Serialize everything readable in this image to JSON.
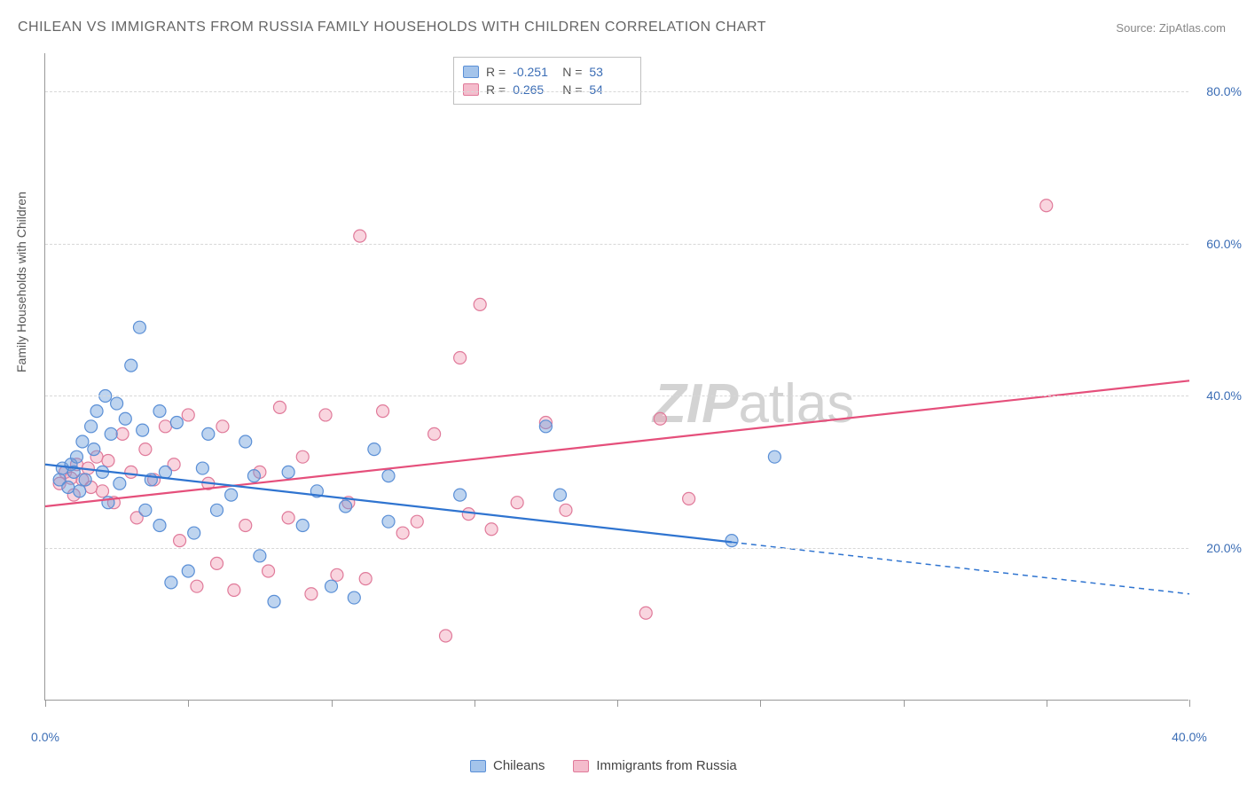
{
  "title": "CHILEAN VS IMMIGRANTS FROM RUSSIA FAMILY HOUSEHOLDS WITH CHILDREN CORRELATION CHART",
  "source_label": "Source:",
  "source_name": "ZipAtlas.com",
  "y_axis_title": "Family Households with Children",
  "watermark_a": "ZIP",
  "watermark_b": "atlas",
  "chart": {
    "type": "scatter-correlation",
    "background_color": "#ffffff",
    "grid_color": "#d8d8d8",
    "axis_color": "#999999",
    "tick_label_color": "#3b6db5",
    "tick_label_fontsize": 14,
    "xlim": [
      0,
      40
    ],
    "ylim": [
      0,
      85
    ],
    "x_ticks": [
      0,
      5,
      10,
      15,
      20,
      25,
      30,
      35,
      40
    ],
    "x_tick_labels": {
      "0": "0.0%",
      "40": "40.0%"
    },
    "y_ticks": [
      20,
      40,
      60,
      80
    ],
    "y_tick_labels": {
      "20": "20.0%",
      "40": "40.0%",
      "60": "60.0%",
      "80": "80.0%"
    },
    "point_radius": 7,
    "point_stroke_width": 1.2,
    "series": {
      "blue": {
        "label": "Chileans",
        "fill": "rgba(110,160,220,0.45)",
        "stroke": "#5a8fd6",
        "swatch_fill": "#a4c4eb",
        "swatch_stroke": "#5a8fd6",
        "r_value": "-0.251",
        "n_value": "53",
        "regression": {
          "x1": 0,
          "y1": 31,
          "x2": 40,
          "y2": 14,
          "solid_until_x": 24
        },
        "line_color": "#2f74d0",
        "line_width": 2.2,
        "points": [
          [
            0.5,
            29
          ],
          [
            0.6,
            30.5
          ],
          [
            0.8,
            28
          ],
          [
            0.9,
            31
          ],
          [
            1.0,
            30
          ],
          [
            1.1,
            32
          ],
          [
            1.2,
            27.5
          ],
          [
            1.3,
            34
          ],
          [
            1.4,
            29
          ],
          [
            1.6,
            36
          ],
          [
            1.7,
            33
          ],
          [
            1.8,
            38
          ],
          [
            2.0,
            30
          ],
          [
            2.1,
            40
          ],
          [
            2.2,
            26
          ],
          [
            2.3,
            35
          ],
          [
            2.5,
            39
          ],
          [
            2.6,
            28.5
          ],
          [
            2.8,
            37
          ],
          [
            3.0,
            44
          ],
          [
            3.3,
            49
          ],
          [
            3.4,
            35.5
          ],
          [
            3.5,
            25
          ],
          [
            3.7,
            29
          ],
          [
            4.0,
            38
          ],
          [
            4.0,
            23
          ],
          [
            4.2,
            30
          ],
          [
            4.4,
            15.5
          ],
          [
            4.6,
            36.5
          ],
          [
            5.0,
            17
          ],
          [
            5.2,
            22
          ],
          [
            5.5,
            30.5
          ],
          [
            5.7,
            35
          ],
          [
            6.0,
            25
          ],
          [
            6.5,
            27
          ],
          [
            7.0,
            34
          ],
          [
            7.3,
            29.5
          ],
          [
            7.5,
            19
          ],
          [
            8.0,
            13
          ],
          [
            8.5,
            30
          ],
          [
            9.0,
            23
          ],
          [
            9.5,
            27.5
          ],
          [
            10.0,
            15
          ],
          [
            10.5,
            25.5
          ],
          [
            10.8,
            13.5
          ],
          [
            11.5,
            33
          ],
          [
            12.0,
            23.5
          ],
          [
            12.0,
            29.5
          ],
          [
            14.5,
            27
          ],
          [
            17.5,
            36
          ],
          [
            18.0,
            27
          ],
          [
            24.0,
            21
          ],
          [
            25.5,
            32
          ]
        ]
      },
      "pink": {
        "label": "Immigrants from Russia",
        "fill": "rgba(240,150,175,0.40)",
        "stroke": "#e07a9a",
        "swatch_fill": "#f4bccc",
        "swatch_stroke": "#e07a9a",
        "r_value": "0.265",
        "n_value": "54",
        "regression": {
          "x1": 0,
          "y1": 25.5,
          "x2": 40,
          "y2": 42,
          "solid_until_x": 40
        },
        "line_color": "#e54f7b",
        "line_width": 2.2,
        "points": [
          [
            0.5,
            28.5
          ],
          [
            0.7,
            30
          ],
          [
            0.9,
            29.2
          ],
          [
            1.0,
            27
          ],
          [
            1.1,
            31
          ],
          [
            1.3,
            29
          ],
          [
            1.5,
            30.5
          ],
          [
            1.6,
            28
          ],
          [
            1.8,
            32
          ],
          [
            2.0,
            27.5
          ],
          [
            2.2,
            31.5
          ],
          [
            2.4,
            26
          ],
          [
            2.7,
            35
          ],
          [
            3.0,
            30
          ],
          [
            3.2,
            24
          ],
          [
            3.5,
            33
          ],
          [
            3.8,
            29
          ],
          [
            4.2,
            36
          ],
          [
            4.5,
            31
          ],
          [
            4.7,
            21
          ],
          [
            5.0,
            37.5
          ],
          [
            5.3,
            15
          ],
          [
            5.7,
            28.5
          ],
          [
            6.0,
            18
          ],
          [
            6.2,
            36
          ],
          [
            6.6,
            14.5
          ],
          [
            7.0,
            23
          ],
          [
            7.5,
            30
          ],
          [
            7.8,
            17
          ],
          [
            8.2,
            38.5
          ],
          [
            8.5,
            24
          ],
          [
            9.0,
            32
          ],
          [
            9.3,
            14
          ],
          [
            9.8,
            37.5
          ],
          [
            10.2,
            16.5
          ],
          [
            10.6,
            26
          ],
          [
            11.0,
            61
          ],
          [
            11.2,
            16
          ],
          [
            11.8,
            38
          ],
          [
            12.5,
            22
          ],
          [
            13.0,
            23.5
          ],
          [
            13.6,
            35
          ],
          [
            14.0,
            8.5
          ],
          [
            14.5,
            45
          ],
          [
            14.8,
            24.5
          ],
          [
            15.2,
            52
          ],
          [
            15.6,
            22.5
          ],
          [
            16.5,
            26
          ],
          [
            17.5,
            36.5
          ],
          [
            18.2,
            25
          ],
          [
            21.0,
            11.5
          ],
          [
            21.5,
            37
          ],
          [
            22.5,
            26.5
          ],
          [
            35.0,
            65
          ]
        ]
      }
    }
  },
  "legend_top": {
    "r_label": "R =",
    "n_label": "N ="
  }
}
